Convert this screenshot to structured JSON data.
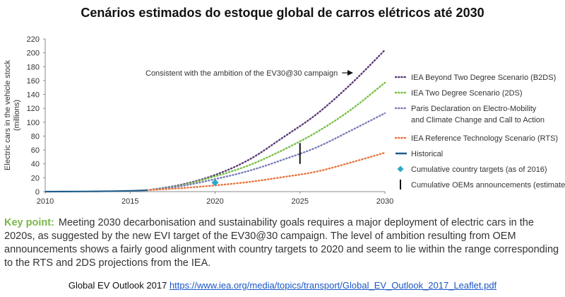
{
  "title": "Cenários estimados do estoque global de carros elétricos até 2030",
  "key_point": {
    "label": "Key point:",
    "text": "Meeting 2030 decarbonisation and sustainability goals requires a major deployment of electric cars in the 2020s, as suggested by the new EVI target of the EV30@30 campaign. The level of ambition resulting from OEM announcements shows a fairly good alignment with country targets to 2020 and seem to lie within the range corresponding to the RTS and 2DS projections from the IEA."
  },
  "source": {
    "label": "Global EV Outlook 2017",
    "url": "https://www.iea.org/media/topics/transport/Global_EV_Outlook_2017_Leaflet.pdf"
  },
  "chart_data": {
    "type": "line",
    "ylabel": "Electric cars in the vehicle stock (millions)",
    "xlabel": "",
    "xlim": [
      2010,
      2030
    ],
    "ylim": [
      0,
      220
    ],
    "x_ticks": [
      2010,
      2015,
      2020,
      2025,
      2030
    ],
    "y_ticks": [
      0,
      20,
      40,
      60,
      80,
      100,
      120,
      140,
      160,
      180,
      200,
      220
    ],
    "grid": false,
    "legend_position": "right",
    "annotation": "Consistent with the ambition of the EV30@30 campaign",
    "series": [
      {
        "name": "IEA Beyond Two Degree Scenario (B2DS)",
        "color": "#5b3a78",
        "style": "dotted",
        "x": [
          2016,
          2018,
          2020,
          2022,
          2024,
          2026,
          2028,
          2030
        ],
        "y": [
          2,
          10,
          24,
          46,
          78,
          112,
          155,
          204
        ]
      },
      {
        "name": "IEA Two Degree Scenario (2DS)",
        "color": "#76c043",
        "style": "dotted",
        "x": [
          2016,
          2018,
          2020,
          2022,
          2024,
          2026,
          2028,
          2030
        ],
        "y": [
          2,
          9,
          22,
          38,
          60,
          86,
          118,
          157
        ]
      },
      {
        "name": "Paris Declaration on Electro-Mobility and Climate Change and Call to Action",
        "color": "#7a7fb8",
        "style": "dotted",
        "x": [
          2016,
          2018,
          2020,
          2022,
          2024,
          2026,
          2028,
          2030
        ],
        "y": [
          2,
          8,
          18,
          30,
          46,
          64,
          88,
          113
        ]
      },
      {
        "name": "IEA Reference Technology Scenario (RTS)",
        "color": "#e8743b",
        "style": "dotted",
        "x": [
          2016,
          2018,
          2020,
          2022,
          2024,
          2026,
          2028,
          2030
        ],
        "y": [
          2,
          5,
          9,
          14,
          21,
          29,
          42,
          56
        ]
      },
      {
        "name": "Historical",
        "color": "#1f5c8a",
        "style": "solid",
        "x": [
          2010,
          2011,
          2012,
          2013,
          2014,
          2015,
          2016
        ],
        "y": [
          0,
          0.1,
          0.2,
          0.4,
          0.7,
          1.2,
          2
        ]
      }
    ],
    "markers": [
      {
        "name": "Cumulative country targets (as of 2016)",
        "color": "#2fa8c8",
        "x": 2020,
        "y": 13
      },
      {
        "name": "Cumulative OEMs announcements (estimate)",
        "color": "#111111",
        "x": 2025,
        "y_low": 40,
        "y_high": 70
      }
    ]
  }
}
